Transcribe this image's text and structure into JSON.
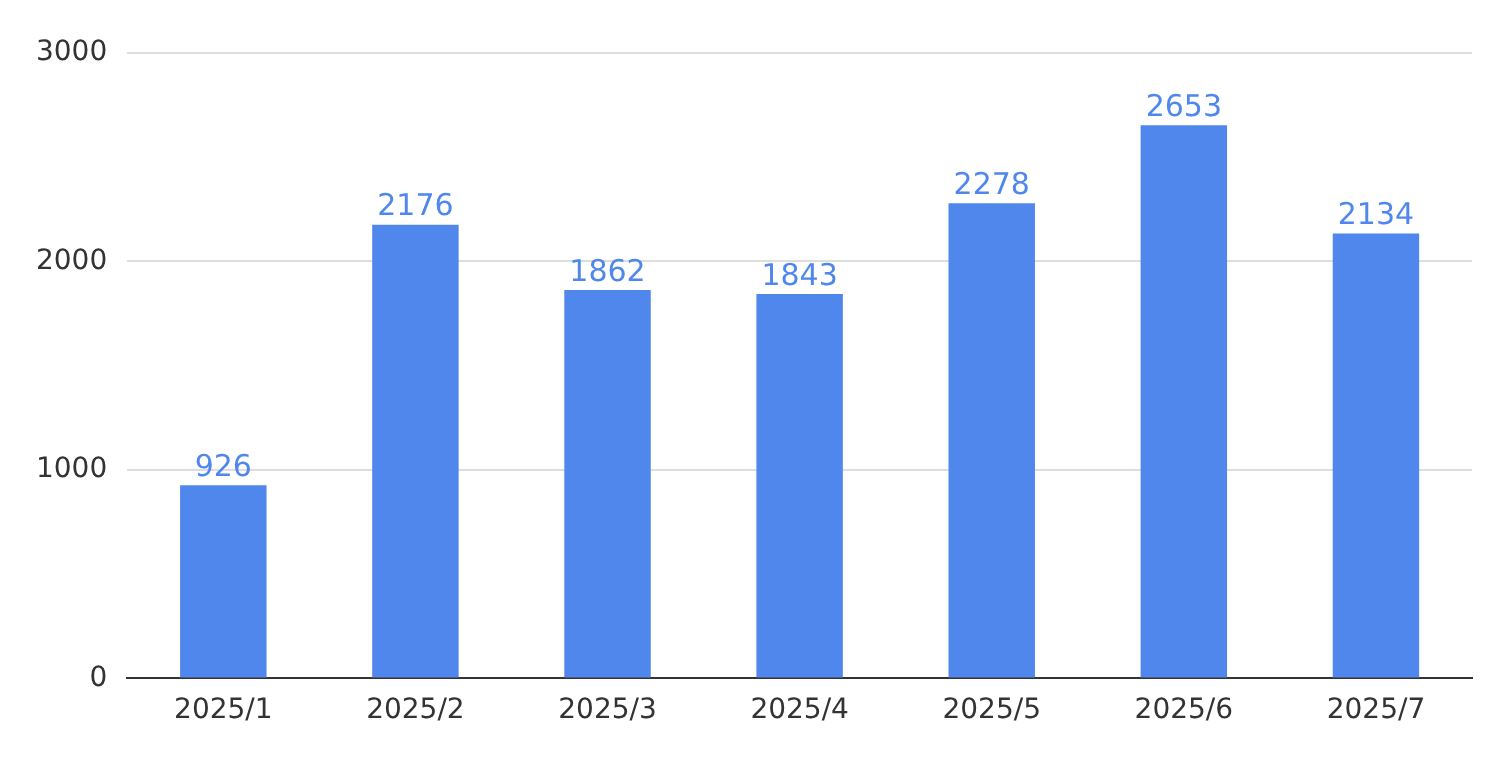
{
  "chart_data": {
    "type": "bar",
    "categories": [
      "2025/1",
      "2025/2",
      "2025/3",
      "2025/4",
      "2025/5",
      "2025/6",
      "2025/7"
    ],
    "values": [
      926,
      2176,
      1862,
      1843,
      2278,
      2653,
      2134
    ],
    "color": "#5087ec",
    "ylim": [
      0,
      3000
    ],
    "yticks": [
      0,
      1000,
      2000,
      3000
    ],
    "grid": "y",
    "data_labels": true
  }
}
